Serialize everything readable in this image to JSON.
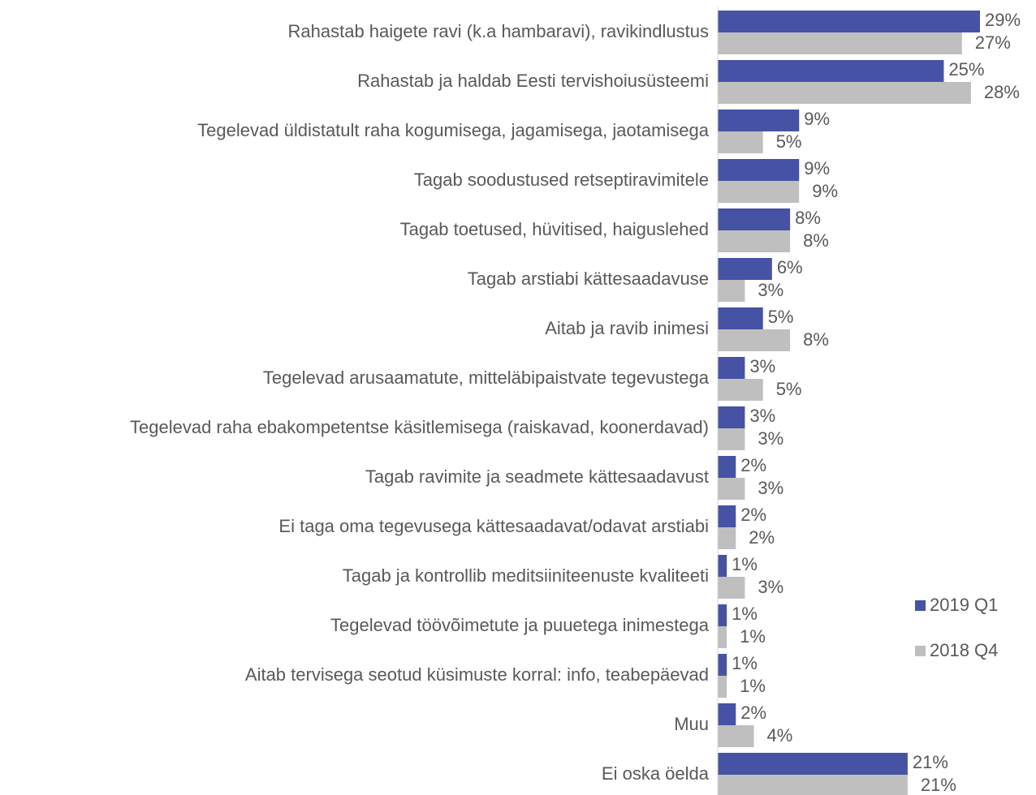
{
  "chart_data": {
    "type": "bar",
    "orientation": "horizontal",
    "categories": [
      "Rahastab haigete ravi (k.a hambaravi), ravikindlustus",
      "Rahastab ja haldab Eesti tervishoiusüsteemi",
      "Tegelevad üldistatult raha kogumisega, jagamisega, jaotamisega",
      "Tagab soodustused retseptiravimitele",
      "Tagab toetused, hüvitised, haiguslehed",
      "Tagab arstiabi kättesaadavuse",
      "Aitab ja ravib inimesi",
      "Tegelevad arusaamatute, mitteläbipaistvate tegevustega",
      "Tegelevad raha ebakompetentse käsitlemisega (raiskavad, koonerdavad)",
      "Tagab ravimite ja seadmete kättesaadavust",
      "Ei taga oma tegevusega kättesaadavat/odavat arstiabi",
      "Tagab ja kontrollib meditsiiniteenuste kvaliteeti",
      "Tegelevad töövõimetute ja puuetega inimestega",
      "Aitab tervisega seotud küsimuste korral: info, teabepäevad",
      "Muu",
      "Ei oska öelda"
    ],
    "series": [
      {
        "name": "2019 Q1",
        "color": "#4652a4",
        "values": [
          29,
          25,
          9,
          9,
          8,
          6,
          5,
          3,
          3,
          2,
          2,
          1,
          1,
          1,
          2,
          21
        ],
        "value_labels": [
          "29%",
          "25%",
          "9%",
          "9%",
          "8%",
          "6%",
          "5%",
          "3%",
          "3%",
          "2%",
          "2%",
          "1%",
          "1%",
          "1%",
          "2%",
          "21%"
        ]
      },
      {
        "name": "2018 Q4",
        "color": "#bfbfbf",
        "values": [
          27,
          28,
          5,
          9,
          8,
          3,
          8,
          5,
          3,
          3,
          2,
          3,
          1,
          1,
          4,
          21
        ],
        "value_labels": [
          "27%",
          "28%",
          "5%",
          "9%",
          "8%",
          "3%",
          "8%",
          "5%",
          "3%",
          "3%",
          "2%",
          "3%",
          "1%",
          "1%",
          "4%",
          "21%"
        ]
      }
    ],
    "legend": "right"
  }
}
